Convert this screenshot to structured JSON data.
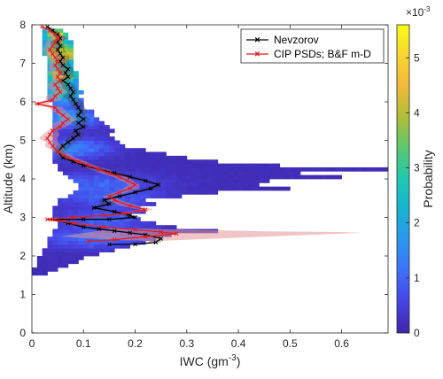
{
  "chart_data": {
    "type": "heatmap",
    "xlabel_base": "IWC (gm",
    "xlabel_exp": "-3",
    "xlabel_end": ")",
    "ylabel": "Altitude (km)",
    "xlim": [
      0,
      0.69
    ],
    "ylim": [
      0,
      8
    ],
    "xticks": [
      0,
      0.1,
      0.2,
      0.3,
      0.4,
      0.5,
      0.6
    ],
    "xtick_labels": [
      "0",
      "0.1",
      "0.2",
      "0.3",
      "0.4",
      "0.5",
      "0.6"
    ],
    "yticks": [
      0,
      1,
      2,
      3,
      4,
      5,
      6,
      7,
      8
    ],
    "ytick_labels": [
      "0",
      "1",
      "2",
      "3",
      "4",
      "5",
      "6",
      "7",
      "8"
    ],
    "colorbar": {
      "label": "Probability",
      "multiplier_base": "×10",
      "multiplier_exp": "-3",
      "range": [
        0,
        0.0056
      ],
      "ticks": [
        0,
        1,
        2,
        3,
        4,
        5
      ],
      "tick_labels": [
        "0",
        "1",
        "2",
        "3",
        "4",
        "5"
      ],
      "colors": [
        "#3e26a8",
        "#4743e3",
        "#3e70fc",
        "#2a96ef",
        "#17b3d1",
        "#1ec9b1",
        "#5ac870",
        "#aebf37",
        "#f0b93b",
        "#f8d531",
        "#f9fb15"
      ]
    },
    "legend": {
      "position": "top-right",
      "entries": [
        "Nevzorov",
        "CIP PSDs; B&F m-D"
      ]
    },
    "bins": {
      "dy": 0.1,
      "dx": 0.01,
      "rows": [
        [
          1.5,
          0.0,
          0.03
        ],
        [
          1.6,
          0.0,
          0.05
        ],
        [
          1.7,
          0.01,
          0.07
        ],
        [
          1.8,
          0.01,
          0.09
        ],
        [
          1.9,
          0.01,
          0.1
        ],
        [
          2.0,
          0.02,
          0.13
        ],
        [
          2.1,
          0.02,
          0.16
        ],
        [
          2.2,
          0.03,
          0.19
        ],
        [
          2.3,
          0.03,
          0.22
        ],
        [
          2.4,
          0.03,
          0.24
        ],
        [
          2.5,
          0.04,
          0.27
        ],
        [
          2.6,
          0.04,
          0.36
        ],
        [
          2.7,
          0.05,
          0.28
        ],
        [
          2.8,
          0.05,
          0.24
        ],
        [
          2.9,
          0.05,
          0.21
        ],
        [
          3.0,
          0.04,
          0.19
        ],
        [
          3.1,
          0.04,
          0.22
        ],
        [
          3.2,
          0.04,
          0.21
        ],
        [
          3.3,
          0.05,
          0.24
        ],
        [
          3.4,
          0.05,
          0.22
        ],
        [
          3.5,
          0.07,
          0.29
        ],
        [
          3.6,
          0.08,
          0.36
        ],
        [
          3.7,
          0.09,
          0.5
        ],
        [
          3.8,
          0.09,
          0.44
        ],
        [
          3.9,
          0.08,
          0.46
        ],
        [
          4.0,
          0.07,
          0.6
        ],
        [
          4.1,
          0.06,
          0.52
        ],
        [
          4.2,
          0.05,
          0.69
        ],
        [
          4.3,
          0.05,
          0.48
        ],
        [
          4.4,
          0.04,
          0.36
        ],
        [
          4.5,
          0.04,
          0.3
        ],
        [
          4.6,
          0.04,
          0.26
        ],
        [
          4.7,
          0.04,
          0.22
        ],
        [
          4.8,
          0.04,
          0.18
        ],
        [
          4.9,
          0.04,
          0.17
        ],
        [
          5.0,
          0.04,
          0.16
        ],
        [
          5.1,
          0.04,
          0.15
        ],
        [
          5.2,
          0.04,
          0.16
        ],
        [
          5.3,
          0.04,
          0.15
        ],
        [
          5.4,
          0.04,
          0.14
        ],
        [
          5.5,
          0.04,
          0.13
        ],
        [
          5.6,
          0.04,
          0.12
        ],
        [
          5.7,
          0.04,
          0.12
        ],
        [
          5.8,
          0.04,
          0.1
        ],
        [
          5.9,
          0.04,
          0.1
        ],
        [
          6.0,
          0.03,
          0.1
        ],
        [
          6.1,
          0.03,
          0.09
        ],
        [
          6.2,
          0.03,
          0.1
        ],
        [
          6.3,
          0.03,
          0.09
        ],
        [
          6.4,
          0.03,
          0.09
        ],
        [
          6.5,
          0.03,
          0.09
        ],
        [
          6.6,
          0.03,
          0.09
        ],
        [
          6.7,
          0.03,
          0.09
        ],
        [
          6.8,
          0.03,
          0.08
        ],
        [
          6.9,
          0.03,
          0.08
        ],
        [
          7.0,
          0.03,
          0.08
        ],
        [
          7.1,
          0.03,
          0.08
        ],
        [
          7.2,
          0.02,
          0.08
        ],
        [
          7.3,
          0.02,
          0.08
        ],
        [
          7.4,
          0.02,
          0.08
        ],
        [
          7.5,
          0.02,
          0.08
        ],
        [
          7.6,
          0.02,
          0.07
        ],
        [
          7.7,
          0.02,
          0.07
        ],
        [
          7.8,
          0.02,
          0.06
        ]
      ],
      "hot": [
        [
          0.055,
          6.7,
          0.06,
          0.0036
        ],
        [
          0.055,
          7.25,
          0.045,
          0.0056
        ],
        [
          0.05,
          7.75,
          0.04,
          0.0042
        ],
        [
          0.06,
          6.2,
          0.07,
          0.0024
        ],
        [
          0.07,
          5.6,
          0.09,
          0.0016
        ],
        [
          0.08,
          4.8,
          0.1,
          0.0012
        ],
        [
          0.12,
          3.9,
          0.16,
          0.0008
        ],
        [
          0.14,
          2.95,
          0.12,
          0.0008
        ],
        [
          0.12,
          2.45,
          0.14,
          0.0009
        ],
        [
          0.15,
          3.5,
          0.14,
          0.0007
        ]
      ],
      "hot_sigma_y": 0.35,
      "hot_sigma_scale": 0.5
    },
    "series": [
      {
        "name": "Nevzorov",
        "color": "#000000",
        "x": [
          0.03,
          0.04,
          0.05,
          0.055,
          0.05,
          0.055,
          0.05,
          0.055,
          0.06,
          0.055,
          0.06,
          0.07,
          0.065,
          0.07,
          0.06,
          0.07,
          0.075,
          0.08,
          0.075,
          0.08,
          0.085,
          0.09,
          0.095,
          0.09,
          0.1,
          0.09,
          0.1,
          0.085,
          0.09,
          0.08,
          0.07,
          0.06,
          0.05,
          0.06,
          0.08,
          0.1,
          0.13,
          0.16,
          0.19,
          0.22,
          0.245,
          0.23,
          0.2,
          0.17,
          0.14,
          0.15,
          0.12,
          0.16,
          0.19,
          0.2,
          0.15,
          0.1,
          0.04,
          0.07,
          0.1,
          0.13,
          0.16,
          0.19,
          0.22,
          0.25,
          0.24,
          0.2,
          0.15
        ],
        "y": [
          7.95,
          7.85,
          7.75,
          7.65,
          7.55,
          7.45,
          7.35,
          7.25,
          7.15,
          7.05,
          6.95,
          6.85,
          6.75,
          6.65,
          6.55,
          6.45,
          6.35,
          6.25,
          6.15,
          6.05,
          5.95,
          5.85,
          5.75,
          5.65,
          5.55,
          5.45,
          5.35,
          5.25,
          5.15,
          5.05,
          4.95,
          4.85,
          4.7,
          4.55,
          4.45,
          4.35,
          4.25,
          4.15,
          4.05,
          3.95,
          3.85,
          3.75,
          3.65,
          3.55,
          3.45,
          3.35,
          3.25,
          3.15,
          3.05,
          3.0,
          2.95,
          2.95,
          2.95,
          2.85,
          2.75,
          2.7,
          2.65,
          2.6,
          2.55,
          2.45,
          2.35,
          2.3,
          2.3
        ]
      },
      {
        "name": "CIP PSDs; B&F m-D",
        "color": "#e41a1c",
        "x": [
          0.02,
          0.035,
          0.045,
          0.05,
          0.045,
          0.04,
          0.035,
          0.04,
          0.045,
          0.05,
          0.045,
          0.05,
          0.055,
          0.05,
          0.055,
          0.045,
          0.05,
          0.055,
          0.045,
          0.04,
          0.01,
          0.045,
          0.05,
          0.06,
          0.07,
          0.06,
          0.055,
          0.04,
          0.035,
          0.03,
          0.035,
          0.04,
          0.05,
          0.07,
          0.09,
          0.11,
          0.13,
          0.15,
          0.17,
          0.185,
          0.2,
          0.19,
          0.17,
          0.15,
          0.16,
          0.19,
          0.22,
          0.18,
          0.14,
          0.08,
          0.03,
          0.08,
          0.14,
          0.2,
          0.25,
          0.28,
          0.22,
          0.16,
          0.11
        ],
        "y": [
          7.95,
          7.85,
          7.75,
          7.65,
          7.55,
          7.45,
          7.35,
          7.25,
          7.15,
          7.05,
          6.95,
          6.85,
          6.75,
          6.65,
          6.55,
          6.45,
          6.35,
          6.25,
          6.15,
          6.05,
          5.95,
          5.85,
          5.75,
          5.65,
          5.55,
          5.45,
          5.35,
          5.25,
          5.15,
          5.05,
          4.95,
          4.85,
          4.7,
          4.55,
          4.45,
          4.35,
          4.25,
          4.15,
          4.05,
          3.95,
          3.85,
          3.75,
          3.65,
          3.55,
          3.45,
          3.3,
          3.2,
          3.1,
          3.05,
          3.0,
          2.95,
          2.85,
          2.75,
          2.68,
          2.62,
          2.58,
          2.5,
          2.42,
          2.38
        ]
      }
    ],
    "red_band": {
      "x": [
        0.64,
        0.6,
        0.52,
        0.45,
        0.38,
        0.3,
        0.24,
        0.16
      ],
      "y": [
        2.6,
        2.62,
        2.63,
        2.64,
        2.66,
        2.68,
        2.7,
        2.72
      ]
    }
  }
}
